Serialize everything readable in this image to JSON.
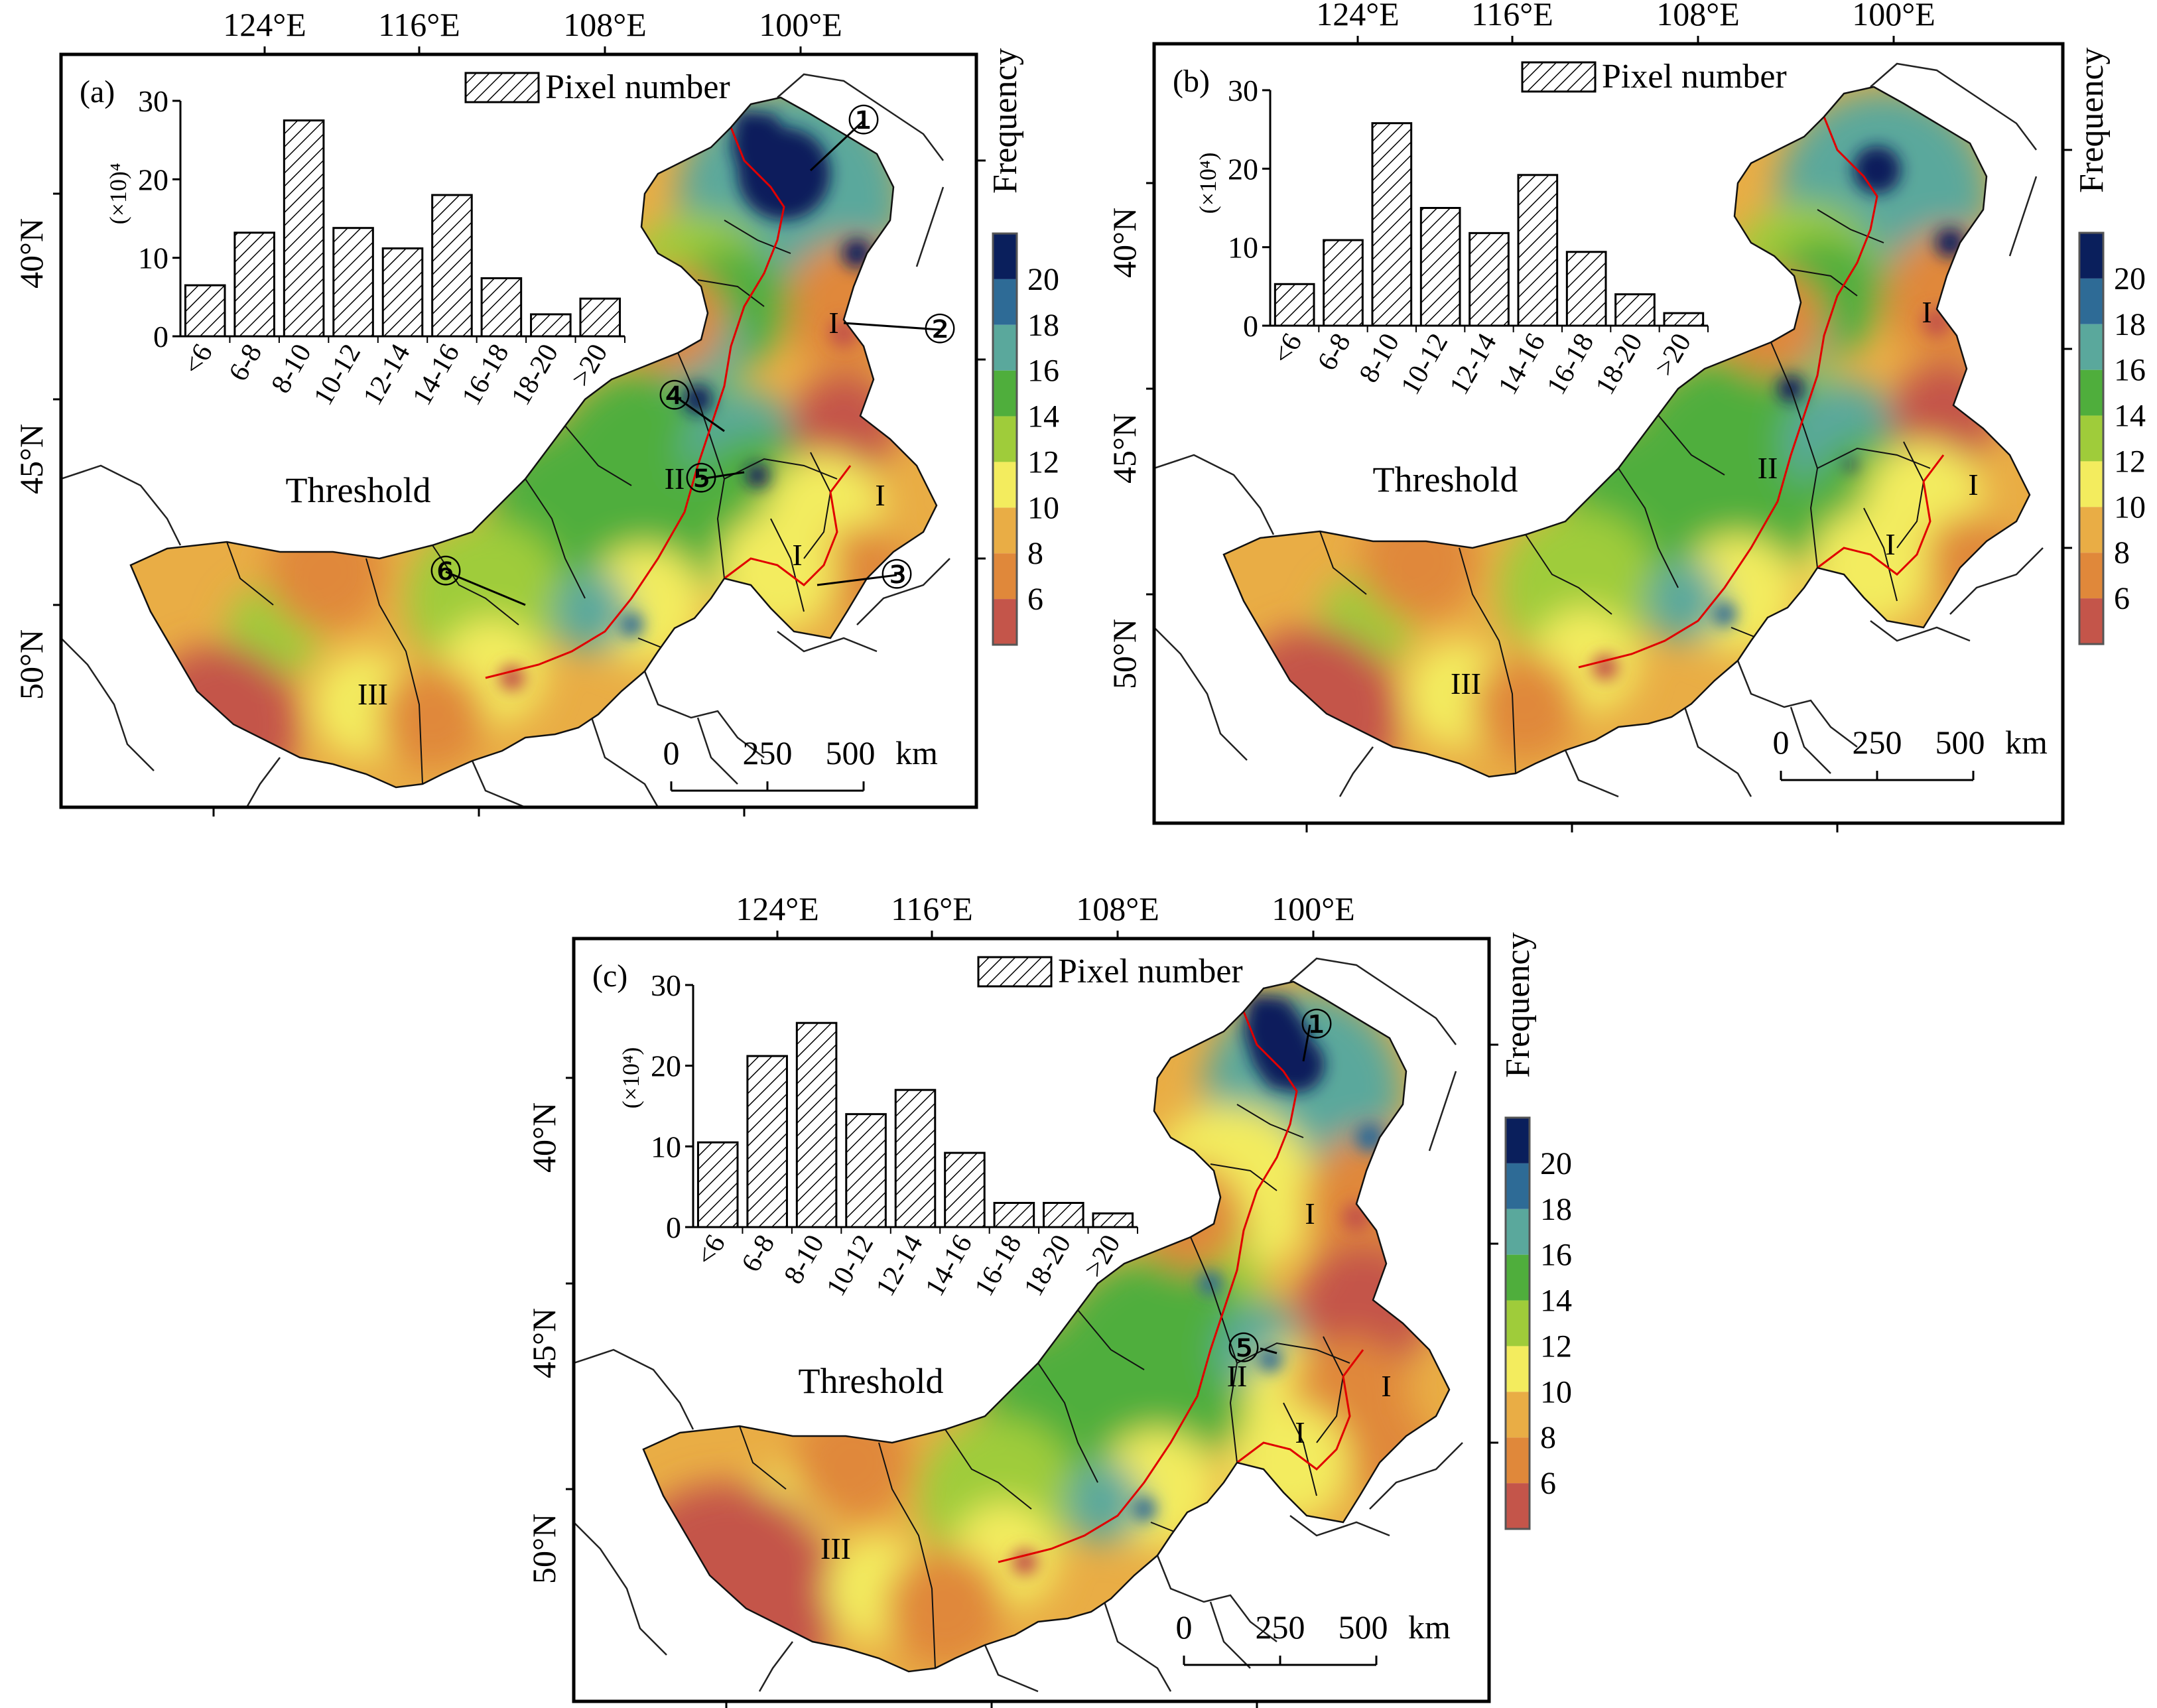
{
  "axes": {
    "lon_ticks": [
      "124°E",
      "116°E",
      "108°E",
      "100°E"
    ],
    "lat_ticks": [
      "40°N",
      "45°N",
      "50°N"
    ]
  },
  "legend": {
    "title": "Frequency",
    "labels": [
      "20",
      "18",
      "16",
      "14",
      "12",
      "10",
      "8",
      "6"
    ],
    "colors": [
      "#0a1f5c",
      "#2e6b96",
      "#5aa89c",
      "#4fae3c",
      "#9fcc3a",
      "#f3ec5e",
      "#e9ad45",
      "#e0883a",
      "#c4554a"
    ]
  },
  "scalebar": {
    "labels": [
      "0",
      "250",
      "500",
      "km"
    ]
  },
  "regions": {
    "I": "I",
    "II": "II",
    "III": "III"
  },
  "markers": [
    "①",
    "②",
    "③",
    "④",
    "⑤",
    "⑥"
  ],
  "map_colors": {
    "base": "#e9ad45",
    "dark_orange": "#e0883a",
    "red": "#c4554a",
    "yellow": "#f3ec5e",
    "light_green": "#9fcc3a",
    "green": "#4fae3c",
    "teal": "#5aa89c",
    "blue": "#2e6b96",
    "navy": "#0a1f5c",
    "boundary_red": "#e00000"
  },
  "panels": [
    {
      "label": "(a)",
      "inset": {
        "legend_label": "Pixel number",
        "unit": "(×10)⁴",
        "xlabel": "Threshold",
        "y_ticks": [
          "0",
          "10",
          "20",
          "30"
        ],
        "categories": [
          "<6",
          "6-8",
          "8-10",
          "10-12",
          "12-14",
          "14-16",
          "16-18",
          "18-20",
          ">20"
        ],
        "values": [
          6.5,
          13.2,
          27.5,
          13.8,
          11.2,
          18,
          7.4,
          2.8,
          4.8
        ]
      }
    },
    {
      "label": "(b)",
      "inset": {
        "legend_label": "Pixel number",
        "unit": "(×10⁴)",
        "xlabel": "Threshold",
        "y_ticks": [
          "0",
          "10",
          "20",
          "30"
        ],
        "categories": [
          "<6",
          "6-8",
          "8-10",
          "10-12",
          "12-14",
          "14-16",
          "16-18",
          "18-20",
          ">20"
        ],
        "values": [
          5.3,
          10.9,
          25.8,
          15,
          11.8,
          19.2,
          9.4,
          4,
          1.6
        ]
      }
    },
    {
      "label": "(c)",
      "inset": {
        "legend_label": "Pixel number",
        "unit": "(×10⁴)",
        "xlabel": "Threshold",
        "y_ticks": [
          "0",
          "10",
          "20",
          "30"
        ],
        "categories": [
          "<6",
          "6-8",
          "8-10",
          "10-12",
          "12-14",
          "14-16",
          "16-18",
          "18-20",
          ">20"
        ],
        "values": [
          10.5,
          21.2,
          25.3,
          14,
          17,
          9.2,
          3,
          3,
          1.7
        ]
      }
    }
  ]
}
